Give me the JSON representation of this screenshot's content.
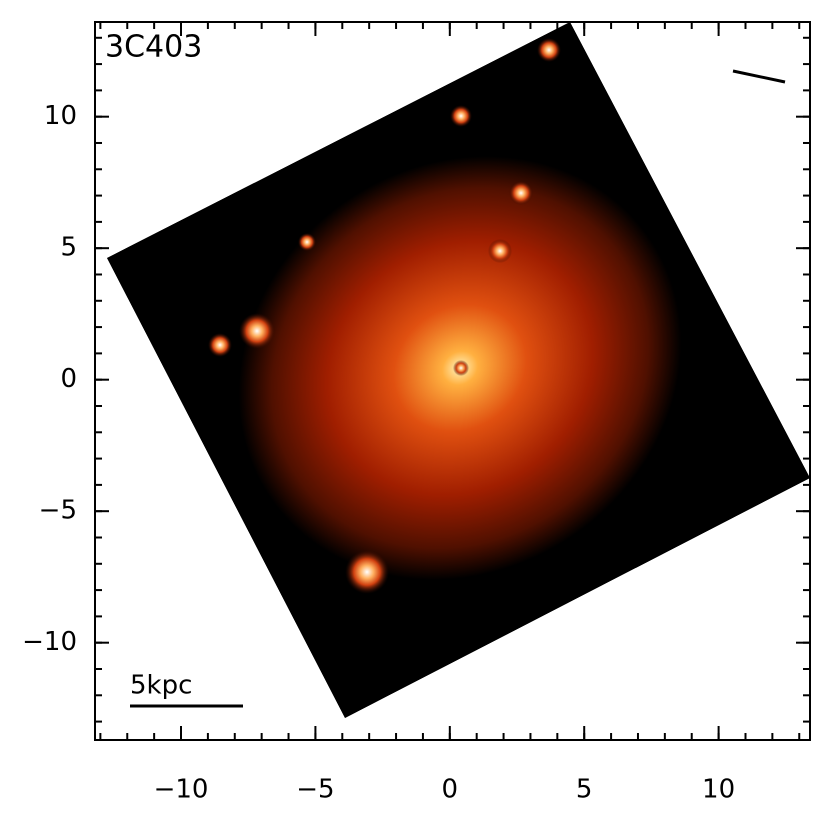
{
  "chart_data": {
    "type": "image",
    "title": "3C403",
    "annotation": "5kpc",
    "xlim": [
      -13.2,
      13.4
    ],
    "ylim": [
      -13.7,
      13.6
    ],
    "xticks": [
      {
        "value": -10,
        "label": "−10"
      },
      {
        "value": -5,
        "label": "−5"
      },
      0,
      5,
      10
    ],
    "yticks": [
      {
        "value": -10,
        "label": "−10"
      },
      {
        "value": -5,
        "label": "−5"
      },
      0,
      5,
      10
    ],
    "xminorticks": [
      -13,
      -12,
      -11,
      -10,
      -9,
      -8,
      -7,
      -6,
      -5,
      -4,
      -3,
      -2,
      -1,
      0,
      1,
      2,
      3,
      4,
      5,
      6,
      7,
      8,
      9,
      10,
      11,
      12,
      13
    ],
    "yminorticks": [
      -13,
      -12,
      -11,
      -10,
      -9,
      -8,
      -7,
      -6,
      -5,
      -4,
      -3,
      -2,
      -1,
      0,
      1,
      2,
      3,
      4,
      5,
      6,
      7,
      8,
      9,
      10,
      11,
      12,
      13
    ]
  }
}
